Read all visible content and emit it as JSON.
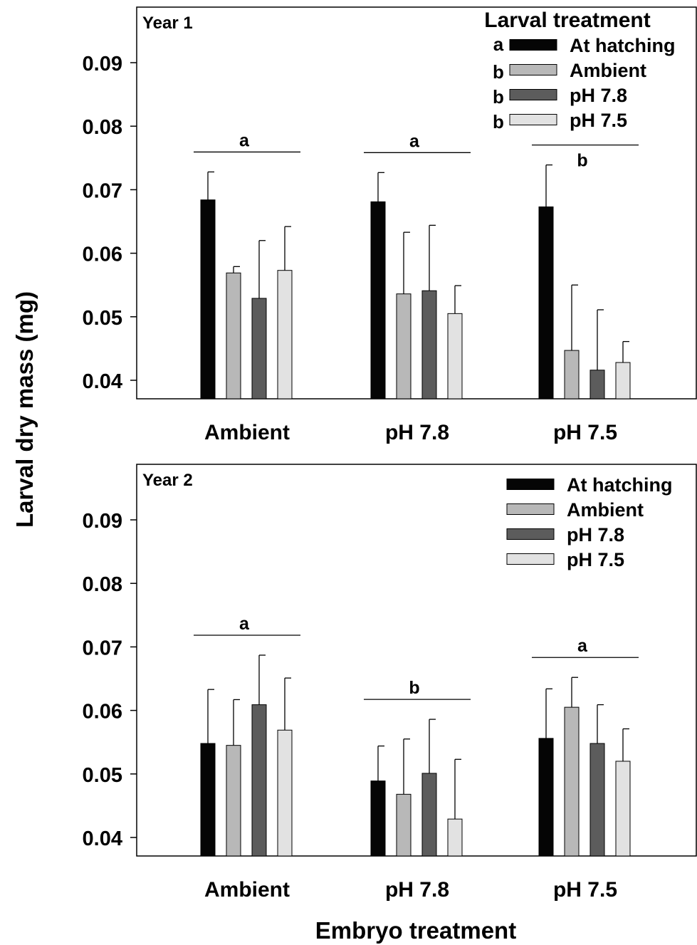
{
  "ylabel": "Larval dry mass (mg)",
  "xlabel": "Embryo treatment",
  "colors": {
    "At hatching": "#050505",
    "Ambient": "#b8b8b8",
    "pH 7.8": "#5c5c5c",
    "pH 7.5": "#e2e2e2"
  },
  "chart_data": [
    {
      "type": "bar",
      "panel_label": "Year 1",
      "legend_title": "Larval treatment",
      "legend_letters": [
        "a",
        "b",
        "b",
        "b"
      ],
      "categories": [
        "Ambient",
        "pH 7.8",
        "pH 7.5"
      ],
      "group_letters": [
        "a",
        "a",
        "b"
      ],
      "ylim": [
        0.037,
        0.099
      ],
      "yticks": [
        0.04,
        0.05,
        0.06,
        0.07,
        0.08,
        0.09
      ],
      "ytick_labels": [
        "0.04",
        "0.05",
        "0.06",
        "0.07",
        "0.08",
        "0.09"
      ],
      "series": [
        {
          "name": "At hatching",
          "values": [
            0.0684,
            0.0681,
            0.0673
          ],
          "errors": [
            0.0044,
            0.0046,
            0.0066
          ]
        },
        {
          "name": "Ambient",
          "values": [
            0.0569,
            0.0536,
            0.0447
          ],
          "errors": [
            0.001,
            0.0097,
            0.0103
          ]
        },
        {
          "name": "pH 7.8",
          "values": [
            0.0529,
            0.0541,
            0.0416
          ],
          "errors": [
            0.0091,
            0.0103,
            0.0095
          ]
        },
        {
          "name": "pH 7.5",
          "values": [
            0.0573,
            0.0505,
            0.0428
          ],
          "errors": [
            0.0069,
            0.0044,
            0.0033
          ]
        }
      ]
    },
    {
      "type": "bar",
      "panel_label": "Year 2",
      "legend_title": "",
      "legend_letters": [],
      "categories": [
        "Ambient",
        "pH 7.8",
        "pH 7.5"
      ],
      "group_letters": [
        "a",
        "b",
        "a"
      ],
      "ylim": [
        0.037,
        0.099
      ],
      "yticks": [
        0.04,
        0.05,
        0.06,
        0.07,
        0.08,
        0.09
      ],
      "ytick_labels": [
        "0.04",
        "0.05",
        "0.06",
        "0.07",
        "0.08",
        "0.09"
      ],
      "series": [
        {
          "name": "At hatching",
          "values": [
            0.0548,
            0.0489,
            0.0556
          ],
          "errors": [
            0.0085,
            0.0055,
            0.0078
          ]
        },
        {
          "name": "Ambient",
          "values": [
            0.0545,
            0.0468,
            0.0605
          ],
          "errors": [
            0.0072,
            0.0087,
            0.0047
          ]
        },
        {
          "name": "pH 7.8",
          "values": [
            0.0609,
            0.0501,
            0.0548
          ],
          "errors": [
            0.0078,
            0.0085,
            0.0061
          ]
        },
        {
          "name": "pH 7.5",
          "values": [
            0.0569,
            0.0429,
            0.052
          ],
          "errors": [
            0.0082,
            0.0094,
            0.0051
          ]
        }
      ]
    }
  ]
}
